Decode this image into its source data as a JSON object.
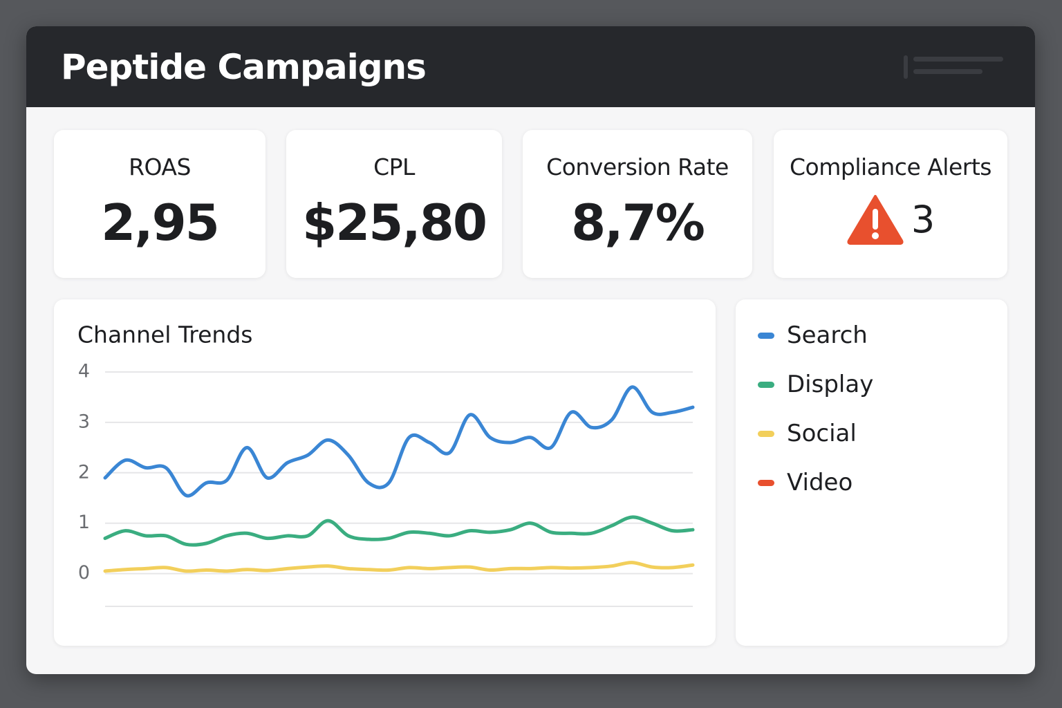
{
  "header": {
    "title": "Peptide Campaigns"
  },
  "kpis": [
    {
      "label": "ROAS",
      "value": "2,95"
    },
    {
      "label": "CPL",
      "value": "$25,80"
    },
    {
      "label": "Conversion Rate",
      "value": "8,7%"
    },
    {
      "label": "Compliance Alerts",
      "value": 3
    }
  ],
  "chart_data": {
    "type": "line",
    "title": "Channel Trends",
    "categories": [
      null,
      null,
      null,
      null,
      null,
      null,
      null,
      null,
      null,
      null,
      null,
      null,
      null,
      null,
      null,
      null,
      null,
      null,
      null,
      null,
      null,
      null,
      null,
      null,
      null,
      null,
      null,
      null,
      null,
      null
    ],
    "series": [
      {
        "name": "Search",
        "color": "#3a86d4",
        "values": [
          1.9,
          2.25,
          2.1,
          2.1,
          1.55,
          1.8,
          1.85,
          2.5,
          1.9,
          2.2,
          2.35,
          2.65,
          2.35,
          1.8,
          1.8,
          2.7,
          2.6,
          2.4,
          3.15,
          2.7,
          2.6,
          2.7,
          2.5,
          3.2,
          2.9,
          3.05,
          3.7,
          3.2,
          3.2,
          3.3
        ]
      },
      {
        "name": "Display",
        "color": "#3aad80",
        "values": [
          0.7,
          0.85,
          0.75,
          0.75,
          0.58,
          0.6,
          0.75,
          0.8,
          0.7,
          0.75,
          0.75,
          1.05,
          0.75,
          0.68,
          0.7,
          0.82,
          0.8,
          0.75,
          0.85,
          0.82,
          0.87,
          1.0,
          0.82,
          0.8,
          0.8,
          0.95,
          1.12,
          1.0,
          0.85,
          0.87
        ]
      },
      {
        "name": "Social",
        "color": "#f2cf5b",
        "values": [
          0.05,
          0.08,
          0.1,
          0.12,
          0.05,
          0.07,
          0.05,
          0.08,
          0.06,
          0.1,
          0.13,
          0.15,
          0.1,
          0.08,
          0.07,
          0.12,
          0.1,
          0.12,
          0.13,
          0.07,
          0.1,
          0.1,
          0.12,
          0.11,
          0.12,
          0.15,
          0.22,
          0.13,
          0.12,
          0.17
        ]
      },
      {
        "name": "Video",
        "color": "#e8502e",
        "values": [
          null,
          null,
          null,
          null,
          null,
          null,
          null,
          null,
          null,
          null,
          null,
          null,
          null,
          null,
          null,
          null,
          null,
          null,
          null,
          null,
          null,
          null,
          null,
          null,
          null,
          null,
          null,
          null,
          null,
          null
        ]
      }
    ],
    "ylim": [
      -0.65,
      4
    ],
    "yticks": [
      0,
      1,
      2,
      3,
      4
    ],
    "grid": true
  }
}
